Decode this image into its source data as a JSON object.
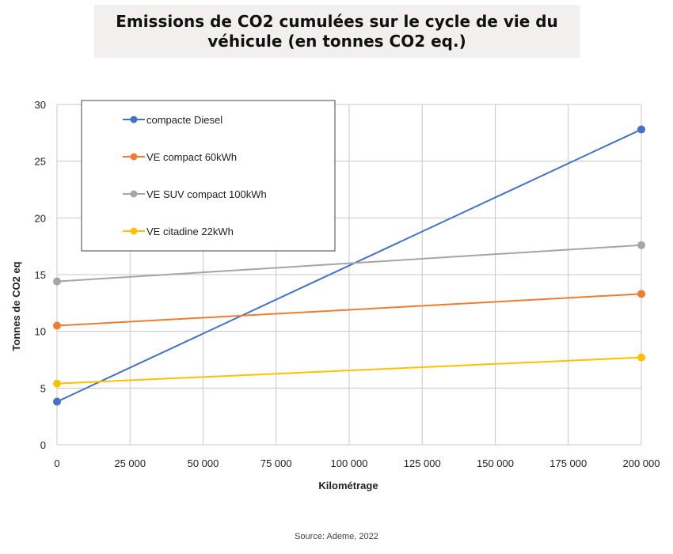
{
  "title": "Emissions de CO2 cumulées sur le cycle de vie du véhicule (en tonnes CO2 eq.)",
  "source": "Source: Ademe, 2022",
  "chart_data": {
    "type": "line",
    "xlabel": "Kilométrage",
    "ylabel": "Tonnes de CO2 eq",
    "x": [
      0,
      200000
    ],
    "xlim": [
      0,
      200000
    ],
    "ylim": [
      0,
      30
    ],
    "xticks": [
      0,
      25000,
      50000,
      75000,
      100000,
      125000,
      150000,
      175000,
      200000
    ],
    "xtick_labels": [
      "0",
      "25 000",
      "50 000",
      "75 000",
      "100 000",
      "125 000",
      "150 000",
      "175 000",
      "200 000"
    ],
    "yticks": [
      0,
      5,
      10,
      15,
      20,
      25,
      30
    ],
    "ytick_labels": [
      "0",
      "5",
      "10",
      "15",
      "20",
      "25",
      "30"
    ],
    "grid": true,
    "legend_position": "top-left",
    "series": [
      {
        "name": "compacte Diesel",
        "values": [
          3.8,
          27.8
        ],
        "color": "#4472c4"
      },
      {
        "name": "VE compact  60kWh",
        "values": [
          10.5,
          13.3
        ],
        "color": "#ed7d31"
      },
      {
        "name": "VE SUV compact 100kWh",
        "values": [
          14.4,
          17.6
        ],
        "color": "#a5a5a5"
      },
      {
        "name": "VE citadine 22kWh",
        "values": [
          5.4,
          7.7
        ],
        "color": "#ffc000"
      }
    ]
  }
}
